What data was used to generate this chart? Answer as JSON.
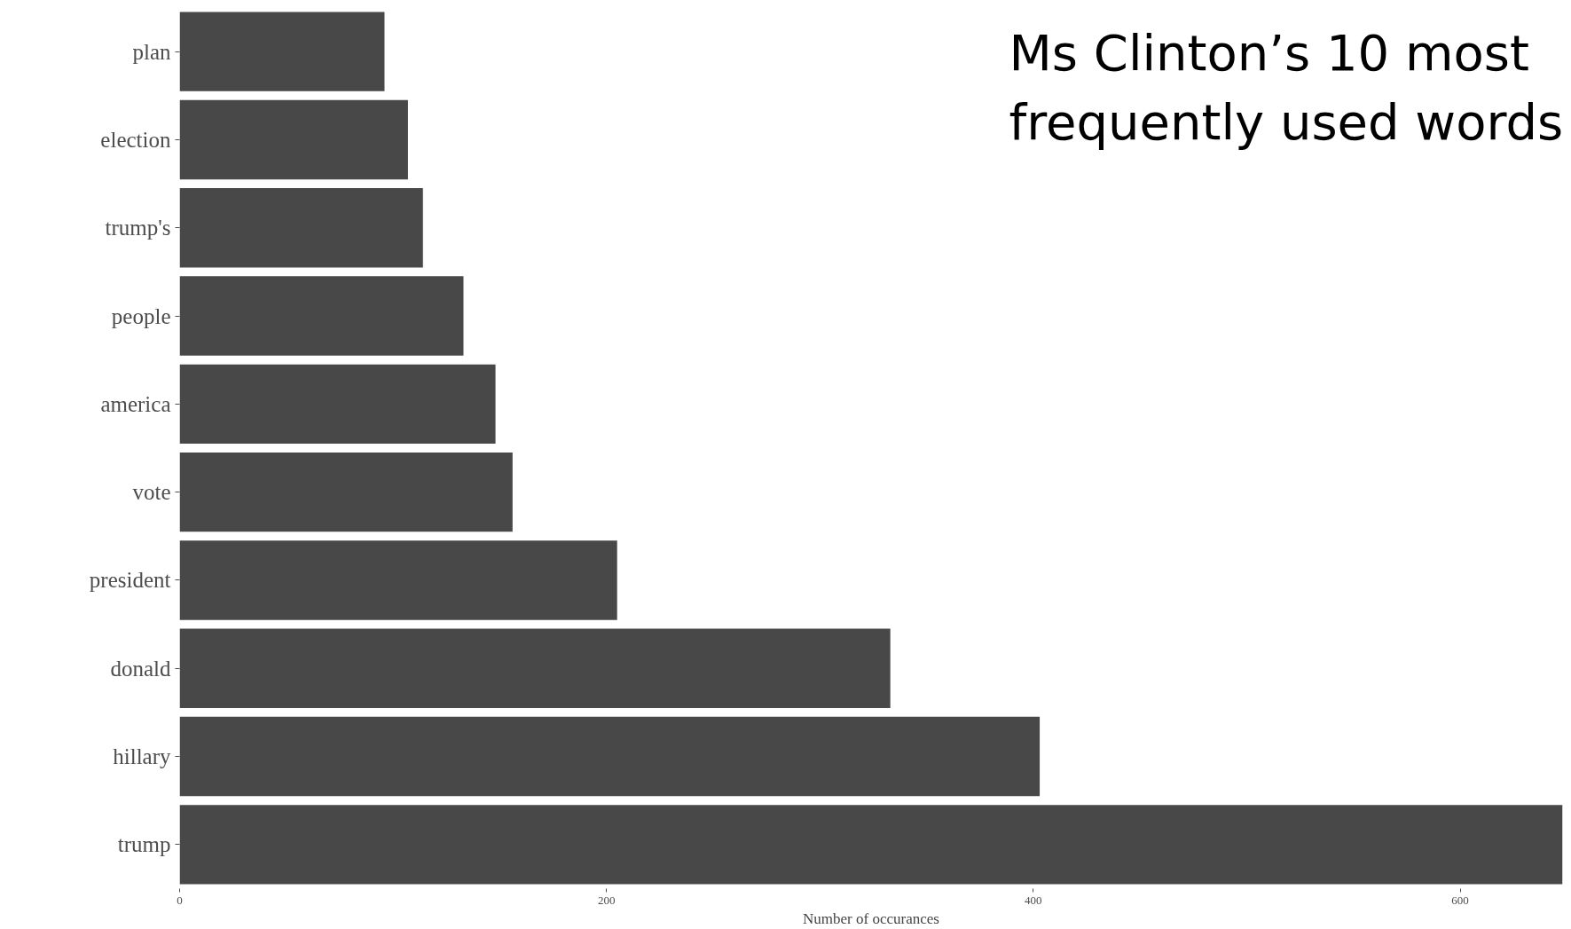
{
  "chart_data": {
    "type": "bar",
    "orientation": "horizontal",
    "title": "Ms Clinton’s 10 most frequently used words",
    "xlabel": "Number of occurances",
    "categories": [
      "plan",
      "election",
      "trump's",
      "people",
      "america",
      "vote",
      "president",
      "donald",
      "hillary",
      "trump"
    ],
    "values": [
      96,
      107,
      114,
      133,
      148,
      156,
      205,
      333,
      403,
      648
    ],
    "color": "#484848",
    "xlim": [
      0,
      648
    ],
    "xticks": [
      0,
      200,
      400,
      600
    ],
    "grid": false
  }
}
